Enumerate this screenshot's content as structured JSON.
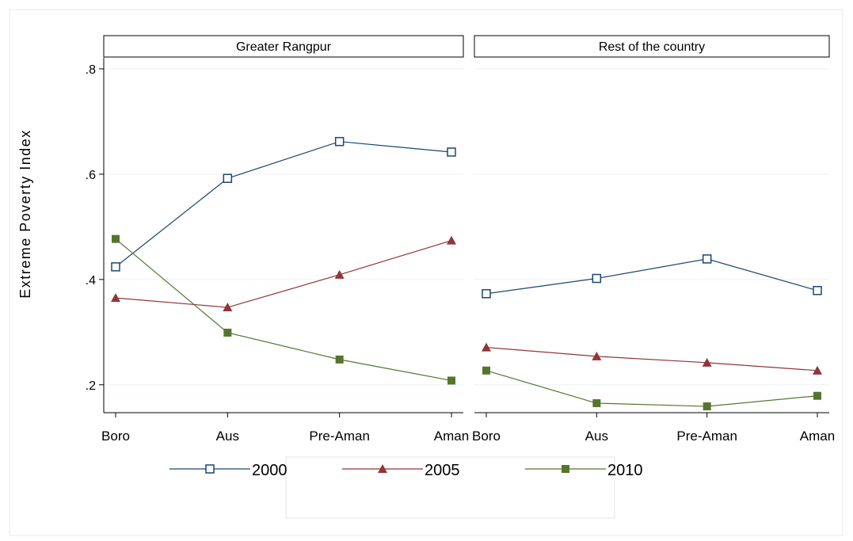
{
  "chart_data": {
    "type": "line",
    "ylabel": "Extreme Poverty Index",
    "ylim": [
      0.147,
      0.821
    ],
    "yticks": [
      {
        "value": 0.2,
        "label": ".2"
      },
      {
        "value": 0.4,
        "label": ".4"
      },
      {
        "value": 0.6,
        "label": ".6"
      },
      {
        "value": 0.8,
        "label": ".8"
      }
    ],
    "grid": true,
    "legend": "bottom",
    "categories": [
      "Boro",
      "Aus",
      "Pre-Aman",
      "Aman"
    ],
    "series": [
      {
        "name": "2000",
        "color": "#1a476f",
        "marker": "hollow-square"
      },
      {
        "name": "2005",
        "color": "#90353b",
        "marker": "triangle"
      },
      {
        "name": "2010",
        "color": "#55752f",
        "marker": "square"
      }
    ],
    "panels": [
      {
        "title": "Greater Rangpur",
        "series": [
          {
            "values": [
              0.424,
              0.592,
              0.662,
              0.642
            ]
          },
          {
            "values": [
              0.365,
              0.347,
              0.409,
              0.474
            ]
          },
          {
            "values": [
              0.477,
              0.299,
              0.248,
              0.208
            ]
          }
        ]
      },
      {
        "title": "Rest of the country",
        "series": [
          {
            "values": [
              0.373,
              0.402,
              0.439,
              0.379
            ]
          },
          {
            "values": [
              0.271,
              0.254,
              0.242,
              0.227
            ]
          },
          {
            "values": [
              0.227,
              0.165,
              0.159,
              0.179
            ]
          }
        ]
      }
    ]
  }
}
